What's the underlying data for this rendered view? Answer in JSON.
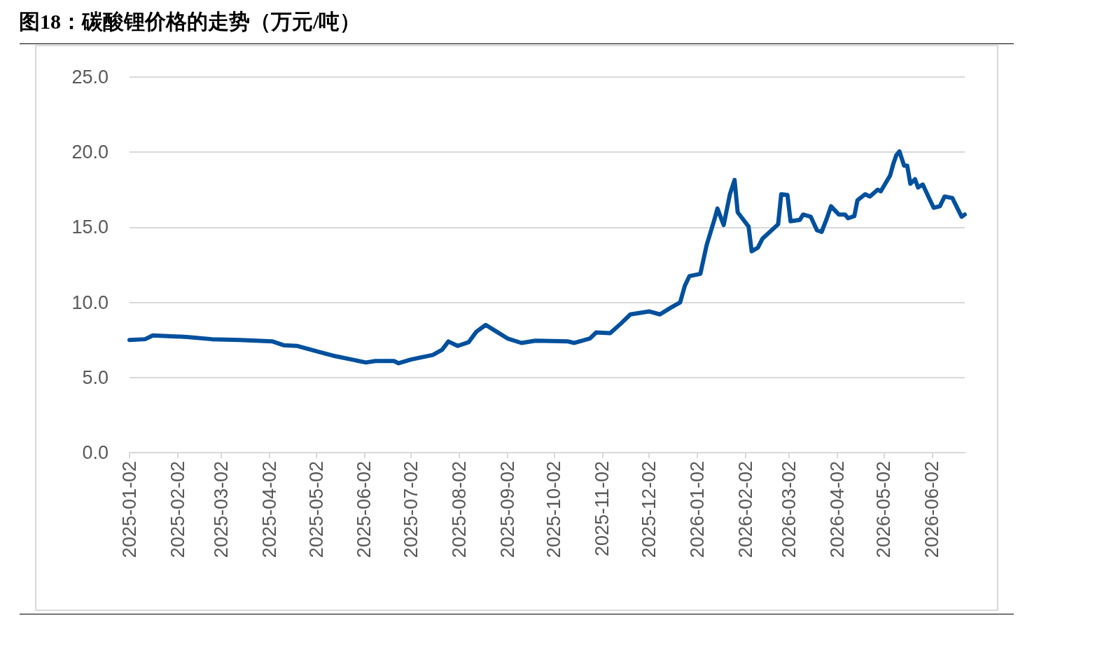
{
  "chart_data": {
    "type": "line",
    "title": "图18：碳酸锂价格的走势（万元/吨）",
    "x": [
      "2025-01-02",
      "2025-01-12",
      "2025-01-17",
      "2025-02-08",
      "2025-02-24",
      "2025-03-14",
      "2025-04-04",
      "2025-04-11",
      "2025-04-20",
      "2025-05-04",
      "2025-05-13",
      "2025-05-27",
      "2025-06-03",
      "2025-06-09",
      "2025-06-21",
      "2025-06-24",
      "2025-07-02",
      "2025-07-16",
      "2025-07-22",
      "2025-07-26",
      "2025-08-01",
      "2025-08-08",
      "2025-08-13",
      "2025-08-19",
      "2025-08-26",
      "2025-09-02",
      "2025-09-11",
      "2025-09-20",
      "2025-10-11",
      "2025-10-15",
      "2025-10-25",
      "2025-10-29",
      "2025-11-07",
      "2025-11-14",
      "2025-11-20",
      "2025-12-02",
      "2025-12-09",
      "2025-12-16",
      "2025-12-22",
      "2025-12-25",
      "2025-12-28",
      "2026-01-04",
      "2026-01-08",
      "2026-01-13",
      "2026-01-15",
      "2026-01-19",
      "2026-01-23",
      "2026-01-26",
      "2026-01-28",
      "2026-02-04",
      "2026-02-06",
      "2026-02-10",
      "2026-02-13",
      "2026-02-23",
      "2026-02-25",
      "2026-03-01",
      "2026-03-03",
      "2026-03-09",
      "2026-03-11",
      "2026-03-16",
      "2026-03-20",
      "2026-03-23",
      "2026-03-26",
      "2026-03-29",
      "2026-04-03",
      "2026-04-07",
      "2026-04-09",
      "2026-04-13",
      "2026-04-15",
      "2026-04-20",
      "2026-04-23",
      "2026-04-28",
      "2026-04-30",
      "2026-05-06",
      "2026-05-08",
      "2026-05-10",
      "2026-05-12",
      "2026-05-15",
      "2026-05-17",
      "2026-05-19",
      "2026-05-22",
      "2026-05-24",
      "2026-05-27",
      "2026-05-31",
      "2026-06-03",
      "2026-06-07",
      "2026-06-10",
      "2026-06-15",
      "2026-06-21",
      "2026-06-23"
    ],
    "series": [
      {
        "color": "#00509d",
        "values": [
          7.5,
          7.55,
          7.8,
          7.7,
          7.55,
          7.5,
          7.4,
          7.15,
          7.1,
          6.7,
          6.45,
          6.15,
          6.0,
          6.1,
          6.1,
          5.95,
          6.2,
          6.5,
          6.85,
          7.4,
          7.1,
          7.35,
          8.05,
          8.5,
          8.05,
          7.6,
          7.3,
          7.45,
          7.4,
          7.3,
          7.6,
          8.0,
          7.95,
          8.6,
          9.2,
          9.4,
          9.2,
          9.65,
          10.0,
          11.1,
          11.75,
          11.9,
          13.8,
          15.5,
          16.25,
          15.15,
          17.2,
          18.15,
          16.0,
          15.05,
          13.4,
          13.65,
          14.25,
          15.2,
          17.2,
          17.15,
          15.4,
          15.5,
          15.85,
          15.7,
          14.8,
          14.7,
          15.5,
          16.4,
          15.85,
          15.85,
          15.6,
          15.75,
          16.8,
          17.2,
          17.05,
          17.5,
          17.4,
          18.45,
          19.2,
          19.8,
          20.05,
          19.1,
          19.1,
          17.9,
          18.2,
          17.65,
          17.85,
          16.95,
          16.3,
          16.4,
          17.05,
          16.95,
          15.7,
          15.85
        ]
      }
    ],
    "xlim": [
      "2025-01-02",
      "2026-06-23"
    ],
    "xticks": [
      "2025-01-02",
      "2025-02-02",
      "2025-03-02",
      "2025-04-02",
      "2025-05-02",
      "2025-06-02",
      "2025-07-02",
      "2025-08-02",
      "2025-09-02",
      "2025-10-02",
      "2025-11-02",
      "2025-12-02",
      "2026-01-02",
      "2026-02-02",
      "2026-03-02",
      "2026-04-02",
      "2026-05-02",
      "2026-06-02"
    ],
    "ylim": [
      0,
      25
    ],
    "yticks": [
      {
        "value": 0,
        "label": "0.0"
      },
      {
        "value": 5,
        "label": "5.0"
      },
      {
        "value": 10,
        "label": "10.0"
      },
      {
        "value": 15,
        "label": "15.0"
      },
      {
        "value": 20,
        "label": "20.0"
      },
      {
        "value": 25,
        "label": "25.0"
      }
    ],
    "grid": "y",
    "marker": "none",
    "line_style": "solid"
  }
}
